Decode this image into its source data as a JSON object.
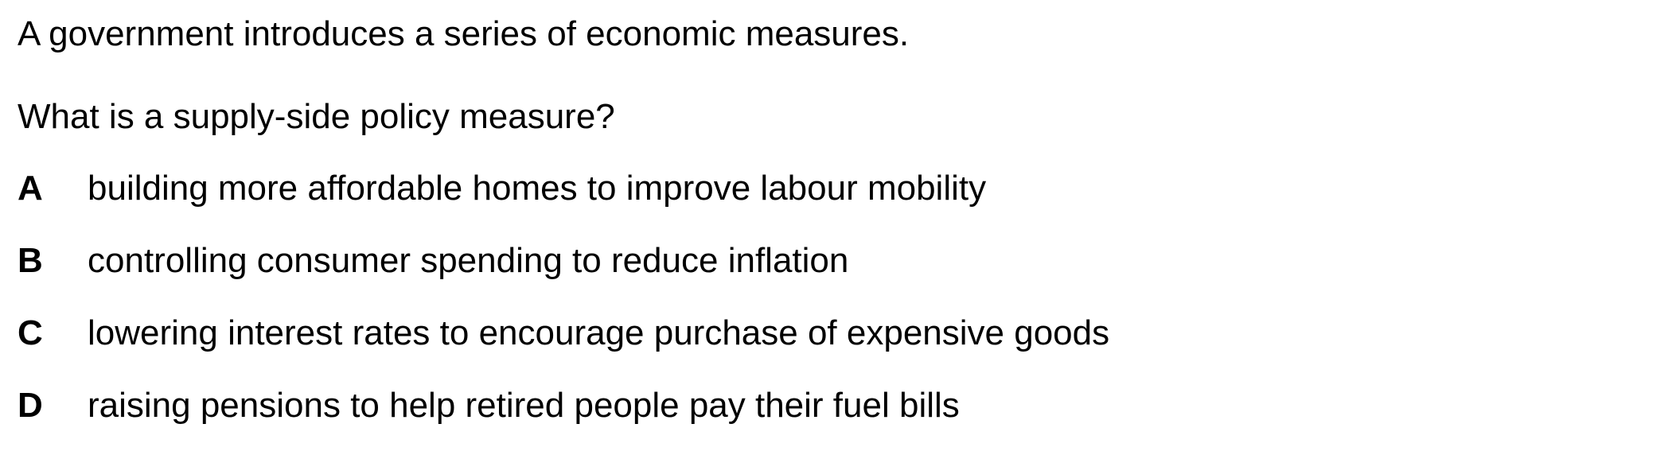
{
  "question": {
    "stem": "A government introduces a series of economic measures.",
    "prompt": "What is a supply-side policy measure?",
    "options": [
      {
        "letter": "A",
        "text": "building more affordable homes to improve labour mobility"
      },
      {
        "letter": "B",
        "text": "controlling consumer spending to reduce inflation"
      },
      {
        "letter": "C",
        "text": "lowering interest rates to encourage purchase of expensive goods"
      },
      {
        "letter": "D",
        "text": "raising pensions to help retired people pay their fuel bills"
      }
    ]
  }
}
